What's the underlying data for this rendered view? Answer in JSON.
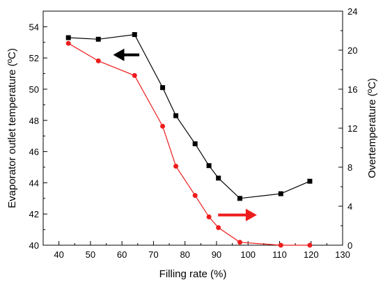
{
  "chart_data": {
    "type": "line",
    "title": "",
    "xlabel": "Filling rate  (%)",
    "ylabel_left": "Evaporator outlet temperature (ºC)",
    "ylabel_right": "Overtemperature (ºC)",
    "xlim": [
      35,
      130
    ],
    "ylim_left": [
      40,
      55
    ],
    "ylim_right": [
      0,
      24
    ],
    "xticks": [
      40,
      50,
      60,
      70,
      80,
      90,
      100,
      110,
      120,
      130
    ],
    "yticks_left": [
      40,
      42,
      44,
      46,
      48,
      50,
      52,
      54
    ],
    "yticks_right": [
      0,
      4,
      8,
      12,
      16,
      20,
      24
    ],
    "grid": false,
    "legend": "none",
    "series": [
      {
        "axis": "left",
        "color": "#000000",
        "marker": "square",
        "arrow_direction": "left",
        "points": [
          [
            43,
            53.3
          ],
          [
            52.5,
            53.2
          ],
          [
            64,
            53.5
          ],
          [
            72.9,
            50.1
          ],
          [
            77.1,
            48.3
          ],
          [
            83.2,
            46.5
          ],
          [
            87.6,
            45.1
          ],
          [
            90.6,
            44.3
          ],
          [
            97.4,
            43.0
          ],
          [
            110.4,
            43.3
          ],
          [
            119.6,
            44.1
          ]
        ]
      },
      {
        "axis": "right",
        "color": "#ee1c1c",
        "marker": "circle",
        "arrow_direction": "right",
        "points": [
          [
            43,
            20.7
          ],
          [
            52.5,
            18.9
          ],
          [
            64,
            17.4
          ],
          [
            72.9,
            12.2
          ],
          [
            77.1,
            8.1
          ],
          [
            83.2,
            5.1
          ],
          [
            87.6,
            2.9
          ],
          [
            90.6,
            1.8
          ],
          [
            97.4,
            0.3
          ],
          [
            110.4,
            0.0
          ],
          [
            119.6,
            0.0
          ]
        ]
      }
    ]
  }
}
